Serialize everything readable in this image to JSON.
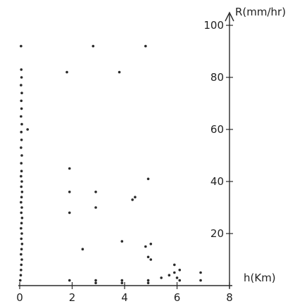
{
  "chart_data": {
    "type": "scatter",
    "title": "",
    "xlabel": "h(Km)",
    "ylabel": "R(mm/hr)",
    "xlim": [
      0,
      8
    ],
    "ylim": [
      0,
      100
    ],
    "x_ticks": [
      0,
      2,
      4,
      6,
      8
    ],
    "y_ticks": [
      20,
      40,
      60,
      80,
      100
    ],
    "x_tick_labels": [
      "0",
      "2",
      "4",
      "6",
      "8"
    ],
    "y_tick_labels": [
      "20",
      "40",
      "60",
      "80",
      "100"
    ],
    "grid": false,
    "colors": {
      "ink": "#2b2b2b",
      "background": "#ffffff"
    },
    "series": [
      {
        "points": [
          [
            0.05,
            92
          ],
          [
            0.3,
            60
          ],
          [
            1.8,
            82
          ],
          [
            2.8,
            92
          ],
          [
            3.8,
            82
          ],
          [
            4.8,
            92
          ],
          [
            1.9,
            45
          ],
          [
            1.9,
            36
          ],
          [
            1.9,
            28
          ],
          [
            2.9,
            36
          ],
          [
            2.9,
            30
          ],
          [
            4.3,
            33
          ],
          [
            4.4,
            34
          ],
          [
            4.9,
            41
          ],
          [
            2.4,
            14
          ],
          [
            3.9,
            17
          ],
          [
            4.8,
            15
          ],
          [
            5.0,
            16
          ],
          [
            4.9,
            11
          ],
          [
            5.0,
            10
          ],
          [
            5.9,
            8
          ],
          [
            5.9,
            5
          ],
          [
            6.1,
            6
          ],
          [
            6.0,
            3
          ],
          [
            6.1,
            2
          ],
          [
            5.4,
            3
          ],
          [
            5.7,
            4
          ],
          [
            6.9,
            5
          ],
          [
            6.9,
            2
          ],
          [
            1.9,
            2
          ],
          [
            2.9,
            2
          ],
          [
            2.9,
            1
          ],
          [
            3.9,
            2
          ],
          [
            3.9,
            1
          ],
          [
            4.9,
            2
          ],
          [
            4.9,
            1
          ],
          [
            0.02,
            2
          ],
          [
            0.04,
            4
          ],
          [
            0.05,
            6
          ],
          [
            0.06,
            8
          ],
          [
            0.08,
            10
          ],
          [
            0.05,
            12
          ],
          [
            0.07,
            14
          ],
          [
            0.09,
            16
          ],
          [
            0.06,
            18
          ],
          [
            0.08,
            20
          ],
          [
            0.05,
            22
          ],
          [
            0.07,
            24
          ],
          [
            0.09,
            26
          ],
          [
            0.06,
            28
          ],
          [
            0.08,
            30
          ],
          [
            0.05,
            32
          ],
          [
            0.07,
            34
          ],
          [
            0.09,
            36
          ],
          [
            0.06,
            38
          ],
          [
            0.08,
            40
          ],
          [
            0.05,
            42
          ],
          [
            0.07,
            44
          ],
          [
            0.06,
            47
          ],
          [
            0.08,
            50
          ],
          [
            0.05,
            53
          ],
          [
            0.07,
            56
          ],
          [
            0.06,
            59
          ],
          [
            0.08,
            62
          ],
          [
            0.05,
            65
          ],
          [
            0.07,
            68
          ],
          [
            0.06,
            71
          ],
          [
            0.08,
            74
          ],
          [
            0.05,
            77
          ],
          [
            0.07,
            80
          ],
          [
            0.06,
            83
          ]
        ]
      }
    ]
  }
}
